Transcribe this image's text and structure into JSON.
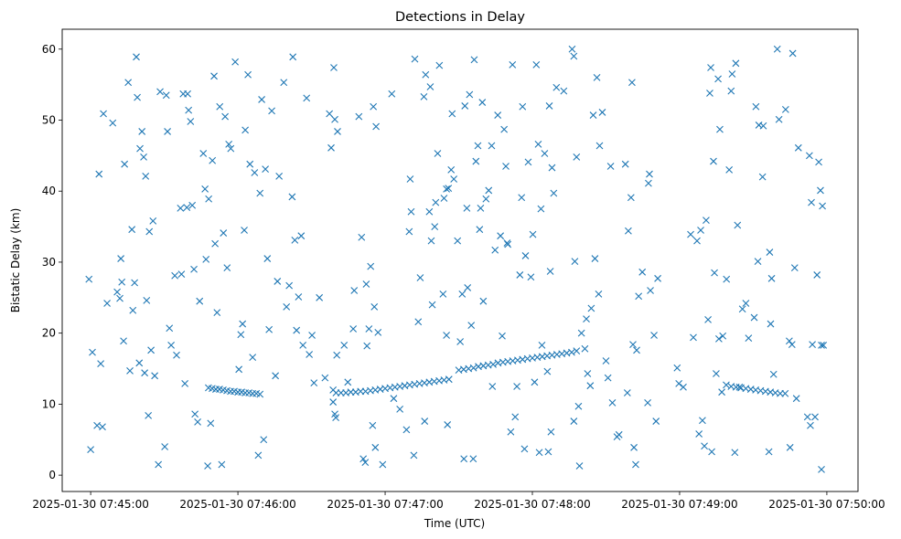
{
  "chart_data": {
    "type": "scatter",
    "title": "Detections in Delay",
    "xlabel": "Time (UTC)",
    "ylabel": "Bistatic Delay (km)",
    "x_units": "seconds after 2025-01-30 07:45:00",
    "xlim": [
      -11.6,
      312.7
    ],
    "ylim": [
      -2.3,
      62.8
    ],
    "grid": false,
    "marker": "x",
    "color": "#1f77b4",
    "xticks": [
      {
        "value": 0,
        "label": "2025-01-30 07:45:00"
      },
      {
        "value": 60,
        "label": "2025-01-30 07:46:00"
      },
      {
        "value": 120,
        "label": "2025-01-30 07:47:00"
      },
      {
        "value": 180,
        "label": "2025-01-30 07:48:00"
      },
      {
        "value": 240,
        "label": "2025-01-30 07:49:00"
      },
      {
        "value": 300,
        "label": "2025-01-30 07:50:00"
      }
    ],
    "yticks": [
      {
        "value": 0,
        "label": "0"
      },
      {
        "value": 10,
        "label": "10"
      },
      {
        "value": 20,
        "label": "20"
      },
      {
        "value": 30,
        "label": "30"
      },
      {
        "value": 40,
        "label": "40"
      },
      {
        "value": 50,
        "label": "50"
      },
      {
        "value": 60,
        "label": "60"
      }
    ],
    "points": [
      [
        -0.7,
        27.6
      ],
      [
        0,
        3.6
      ],
      [
        0.7,
        17.3
      ],
      [
        2.6,
        7.0
      ],
      [
        3.4,
        42.4
      ],
      [
        4.1,
        15.7
      ],
      [
        4.8,
        6.8
      ],
      [
        5.2,
        50.9
      ],
      [
        6.7,
        24.2
      ],
      [
        9,
        49.6
      ],
      [
        10.8,
        25.8
      ],
      [
        11.9,
        24.9
      ],
      [
        12.3,
        30.5
      ],
      [
        12.7,
        27.2
      ],
      [
        13.4,
        18.9
      ],
      [
        13.8,
        43.8
      ],
      [
        15.3,
        55.3
      ],
      [
        16,
        14.7
      ],
      [
        16.8,
        34.6
      ],
      [
        17.2,
        23.2
      ],
      [
        17.9,
        27.1
      ],
      [
        18.6,
        58.9
      ],
      [
        19,
        53.2
      ],
      [
        19.8,
        15.8
      ],
      [
        20.1,
        46.0
      ],
      [
        20.9,
        48.4
      ],
      [
        21.6,
        44.8
      ],
      [
        22.4,
        42.1
      ],
      [
        22,
        14.4
      ],
      [
        22.8,
        24.6
      ],
      [
        23.5,
        8.4
      ],
      [
        23.9,
        34.3
      ],
      [
        24.6,
        17.6
      ],
      [
        25.4,
        35.8
      ],
      [
        26.1,
        14.0
      ],
      [
        27.6,
        1.5
      ],
      [
        28.3,
        54.0
      ],
      [
        30.2,
        4.0
      ],
      [
        30.8,
        53.5
      ],
      [
        31.3,
        48.4
      ],
      [
        32.1,
        20.7
      ],
      [
        32.8,
        18.3
      ],
      [
        34.3,
        28.1
      ],
      [
        35,
        16.9
      ],
      [
        36.6,
        37.6
      ],
      [
        37,
        28.3
      ],
      [
        37.7,
        53.7
      ],
      [
        38.4,
        12.9
      ],
      [
        39.2,
        37.7
      ],
      [
        39.5,
        53.7
      ],
      [
        39.9,
        51.4
      ],
      [
        40.7,
        49.8
      ],
      [
        41.4,
        38.0
      ],
      [
        42.1,
        29.0
      ],
      [
        42.5,
        8.6
      ],
      [
        43.6,
        7.5
      ],
      [
        44.4,
        24.5
      ],
      [
        45.9,
        45.3
      ],
      [
        46.6,
        40.3
      ],
      [
        47,
        30.4
      ],
      [
        47.7,
        1.3
      ],
      [
        48.1,
        38.9
      ],
      [
        48.9,
        7.3
      ],
      [
        49.6,
        44.3
      ],
      [
        50.3,
        56.2
      ],
      [
        50.7,
        32.6
      ],
      [
        51.5,
        22.9
      ],
      [
        52.6,
        51.9
      ],
      [
        53.4,
        1.5
      ],
      [
        54.1,
        34.1
      ],
      [
        54.8,
        50.5
      ],
      [
        55.6,
        29.2
      ],
      [
        56.3,
        46.6
      ],
      [
        57.1,
        46.0
      ],
      [
        58.9,
        58.2
      ],
      [
        60.4,
        14.9
      ],
      [
        61.2,
        19.8
      ],
      [
        61.9,
        21.3
      ],
      [
        62.6,
        34.5
      ],
      [
        63,
        48.6
      ],
      [
        64.1,
        56.4
      ],
      [
        64.9,
        43.8
      ],
      [
        66,
        16.6
      ],
      [
        66.8,
        42.6
      ],
      [
        68.3,
        2.8
      ],
      [
        69,
        39.7
      ],
      [
        69.7,
        52.9
      ],
      [
        70.5,
        5.0
      ],
      [
        71.2,
        43.1
      ],
      [
        72,
        30.5
      ],
      [
        72.7,
        20.5
      ],
      [
        73.8,
        51.3
      ],
      [
        75.3,
        14.0
      ],
      [
        76.1,
        27.3
      ],
      [
        76.8,
        42.1
      ],
      [
        78.7,
        55.3
      ],
      [
        79.8,
        23.7
      ],
      [
        80.9,
        26.7
      ],
      [
        82.1,
        39.2
      ],
      [
        82.4,
        58.9
      ],
      [
        83.2,
        33.1
      ],
      [
        83.9,
        20.4
      ],
      [
        84.7,
        25.1
      ],
      [
        85.8,
        33.7
      ],
      [
        86.5,
        18.3
      ],
      [
        88,
        53.1
      ],
      [
        89.1,
        17.0
      ],
      [
        90.2,
        19.7
      ],
      [
        91,
        13.0
      ],
      [
        48,
        12.3
      ],
      [
        49.5,
        12.2
      ],
      [
        51,
        12.1
      ],
      [
        52.5,
        12.1
      ],
      [
        54,
        12.0
      ],
      [
        55.5,
        11.9
      ],
      [
        57,
        11.8
      ],
      [
        58.5,
        11.8
      ],
      [
        60,
        11.7
      ],
      [
        61.5,
        11.7
      ],
      [
        63,
        11.6
      ],
      [
        64.5,
        11.6
      ],
      [
        66,
        11.5
      ],
      [
        67.5,
        11.5
      ],
      [
        69,
        11.4
      ],
      [
        93.2,
        25
      ],
      [
        95.5,
        13.7
      ],
      [
        97.3,
        50.9
      ],
      [
        98,
        46.1
      ],
      [
        99.1,
        57.4
      ],
      [
        99.5,
        50.1
      ],
      [
        100.6,
        48.4
      ],
      [
        98.8,
        12
      ],
      [
        98.8,
        10.3
      ],
      [
        99.5,
        8.6
      ],
      [
        99.9,
        8.1
      ],
      [
        100.3,
        16.9
      ],
      [
        103.3,
        18.3
      ],
      [
        104.8,
        13.1
      ],
      [
        107,
        20.6
      ],
      [
        107.4,
        26
      ],
      [
        109.3,
        50.5
      ],
      [
        110.4,
        33.5
      ],
      [
        111.1,
        2.3
      ],
      [
        111.9,
        1.8
      ],
      [
        112.3,
        26.9
      ],
      [
        112.6,
        18.2
      ],
      [
        113.4,
        20.6
      ],
      [
        114.1,
        29.4
      ],
      [
        114.9,
        7.0
      ],
      [
        115.2,
        51.9
      ],
      [
        115.6,
        23.7
      ],
      [
        116,
        3.9
      ],
      [
        116.3,
        49.1
      ],
      [
        117.1,
        20.1
      ],
      [
        119,
        1.5
      ],
      [
        122.7,
        53.7
      ],
      [
        123.5,
        10.8
      ],
      [
        126,
        9.3
      ],
      [
        128.7,
        6.4
      ],
      [
        129.8,
        34.3
      ],
      [
        130.2,
        41.7
      ],
      [
        130.6,
        37.1
      ],
      [
        131.7,
        2.8
      ],
      [
        132.1,
        58.6
      ],
      [
        133.5,
        21.6
      ],
      [
        134.3,
        27.8
      ],
      [
        135.8,
        53.3
      ],
      [
        136.1,
        7.6
      ],
      [
        136.5,
        56.4
      ],
      [
        138,
        37.1
      ],
      [
        138.4,
        54.7
      ],
      [
        138.8,
        33
      ],
      [
        139.2,
        24
      ],
      [
        140.2,
        35
      ],
      [
        140.6,
        38.4
      ],
      [
        141.4,
        45.3
      ],
      [
        142.1,
        57.7
      ],
      [
        143.6,
        25.5
      ],
      [
        144,
        39
      ],
      [
        145,
        40.3
      ],
      [
        145,
        19.7
      ],
      [
        145.4,
        7.1
      ],
      [
        145.8,
        40.4
      ],
      [
        146.9,
        43
      ],
      [
        147.3,
        50.9
      ],
      [
        148,
        41.7
      ],
      [
        149.5,
        33
      ],
      [
        150.6,
        18.8
      ],
      [
        151.4,
        25.5
      ],
      [
        152.1,
        2.3
      ],
      [
        152.5,
        52
      ],
      [
        153.3,
        37.6
      ],
      [
        153.6,
        26.4
      ],
      [
        154.4,
        53.6
      ],
      [
        155.1,
        21.1
      ],
      [
        155.9,
        2.3
      ],
      [
        156.3,
        58.5
      ],
      [
        157,
        44.2
      ],
      [
        157.8,
        46.4
      ],
      [
        158.5,
        34.6
      ],
      [
        158.9,
        37.6
      ],
      [
        159.6,
        52.5
      ],
      [
        160,
        24.5
      ],
      [
        161.1,
        38.9
      ],
      [
        162.2,
        40.1
      ],
      [
        163.4,
        46.4
      ],
      [
        163.7,
        12.5
      ],
      [
        164.8,
        31.7
      ],
      [
        165.9,
        50.7
      ],
      [
        167,
        33.7
      ],
      [
        167.7,
        19.6
      ],
      [
        168.5,
        48.7
      ],
      [
        169.2,
        43.5
      ],
      [
        169.7,
        32.7
      ],
      [
        170,
        32.5
      ],
      [
        171.2,
        6.1
      ],
      [
        171.9,
        57.8
      ],
      [
        173,
        8.2
      ],
      [
        173.7,
        12.5
      ],
      [
        174.9,
        28.2
      ],
      [
        175.6,
        39.1
      ],
      [
        176,
        51.9
      ],
      [
        176.8,
        3.7
      ],
      [
        177.2,
        30.9
      ],
      [
        178.3,
        44.1
      ],
      [
        179.4,
        27.9
      ],
      [
        180.2,
        33.9
      ],
      [
        180.9,
        13.1
      ],
      [
        181.6,
        57.8
      ],
      [
        182.4,
        46.6
      ],
      [
        182.8,
        3.2
      ],
      [
        183.5,
        37.5
      ],
      [
        183.9,
        18.3
      ],
      [
        185,
        45.3
      ],
      [
        186.1,
        14.6
      ],
      [
        186.5,
        3.3
      ],
      [
        186.9,
        52
      ],
      [
        187.3,
        28.7
      ],
      [
        187.6,
        6.1
      ],
      [
        188,
        43.3
      ],
      [
        188.7,
        39.7
      ],
      [
        189.8,
        54.6
      ],
      [
        192.8,
        54.1
      ],
      [
        196.2,
        60
      ],
      [
        196.9,
        59
      ],
      [
        196.9,
        7.6
      ],
      [
        197.3,
        30.1
      ],
      [
        198,
        44.8
      ],
      [
        198.8,
        9.7
      ],
      [
        199.2,
        1.3
      ],
      [
        201.4,
        17.8
      ],
      [
        202.5,
        14.3
      ],
      [
        203.6,
        12.6
      ],
      [
        204.8,
        50.7
      ],
      [
        205.5,
        30.5
      ],
      [
        206.3,
        56
      ],
      [
        207,
        25.5
      ],
      [
        207.4,
        46.4
      ],
      [
        208.5,
        51.1
      ],
      [
        210,
        16.1
      ],
      [
        210.8,
        13.7
      ],
      [
        211.9,
        43.5
      ],
      [
        212.6,
        10.2
      ],
      [
        214.5,
        5.4
      ],
      [
        215.3,
        5.7
      ],
      [
        217.9,
        43.8
      ],
      [
        218.7,
        11.6
      ],
      [
        219.1,
        34.4
      ],
      [
        220.2,
        39.1
      ],
      [
        220.6,
        55.3
      ],
      [
        221,
        18.4
      ],
      [
        221.4,
        3.9
      ],
      [
        222.1,
        1.5
      ],
      [
        222.5,
        17.6
      ],
      [
        223.3,
        25.2
      ],
      [
        224.8,
        28.6
      ],
      [
        227,
        10.2
      ],
      [
        227.3,
        41.1
      ],
      [
        227.7,
        42.4
      ],
      [
        228.1,
        26
      ],
      [
        229.6,
        19.7
      ],
      [
        230.4,
        7.6
      ],
      [
        231.1,
        27.7
      ],
      [
        100,
        11.6
      ],
      [
        102,
        11.6
      ],
      [
        104,
        11.6
      ],
      [
        106,
        11.7
      ],
      [
        108,
        11.7
      ],
      [
        110,
        11.8
      ],
      [
        112,
        11.8
      ],
      [
        114,
        11.9
      ],
      [
        116,
        12.0
      ],
      [
        118,
        12.1
      ],
      [
        120,
        12.2
      ],
      [
        122,
        12.3
      ],
      [
        124,
        12.4
      ],
      [
        126,
        12.5
      ],
      [
        128,
        12.6
      ],
      [
        130,
        12.7
      ],
      [
        132,
        12.8
      ],
      [
        134,
        12.9
      ],
      [
        136,
        13.0
      ],
      [
        138,
        13.1
      ],
      [
        140,
        13.2
      ],
      [
        142,
        13.3
      ],
      [
        144,
        13.4
      ],
      [
        146,
        13.5
      ],
      [
        150,
        14.8
      ],
      [
        152,
        14.9
      ],
      [
        154,
        15.0
      ],
      [
        156,
        15.1
      ],
      [
        158,
        15.3
      ],
      [
        160,
        15.4
      ],
      [
        162,
        15.5
      ],
      [
        164,
        15.6
      ],
      [
        166,
        15.8
      ],
      [
        168,
        15.9
      ],
      [
        170,
        16.0
      ],
      [
        172,
        16.1
      ],
      [
        174,
        16.2
      ],
      [
        176,
        16.3
      ],
      [
        178,
        16.4
      ],
      [
        180,
        16.5
      ],
      [
        182,
        16.6
      ],
      [
        184,
        16.7
      ],
      [
        186,
        16.8
      ],
      [
        188,
        16.9
      ],
      [
        190,
        17.0
      ],
      [
        192,
        17.1
      ],
      [
        194,
        17.2
      ],
      [
        196,
        17.3
      ],
      [
        198,
        17.5
      ],
      [
        200,
        20.0
      ],
      [
        202,
        22.0
      ],
      [
        204,
        23.5
      ],
      [
        239,
        15.1
      ],
      [
        239.7,
        12.9
      ],
      [
        241.5,
        12.4
      ],
      [
        244.5,
        33.9
      ],
      [
        245.6,
        19.4
      ],
      [
        247.1,
        33
      ],
      [
        247.9,
        5.8
      ],
      [
        248.6,
        34.5
      ],
      [
        249.3,
        7.7
      ],
      [
        250.1,
        4.1
      ],
      [
        250.8,
        35.9
      ],
      [
        251.6,
        21.9
      ],
      [
        252.3,
        53.8
      ],
      [
        252.7,
        57.4
      ],
      [
        253.1,
        3.3
      ],
      [
        253.8,
        44.2
      ],
      [
        254.2,
        28.5
      ],
      [
        254.9,
        14.3
      ],
      [
        255.7,
        55.8
      ],
      [
        256,
        19.2
      ],
      [
        256.4,
        48.7
      ],
      [
        257.2,
        11.7
      ],
      [
        257.6,
        19.6
      ],
      [
        259.1,
        27.6
      ],
      [
        260.2,
        43
      ],
      [
        261,
        54.1
      ],
      [
        261.4,
        56.5
      ],
      [
        262.5,
        3.2
      ],
      [
        262.9,
        58
      ],
      [
        263.6,
        35.2
      ],
      [
        264.4,
        12.4
      ],
      [
        265.6,
        23.4
      ],
      [
        267,
        24.2
      ],
      [
        268.1,
        19.3
      ],
      [
        270.4,
        22.2
      ],
      [
        271.1,
        51.9
      ],
      [
        271.9,
        30.1
      ],
      [
        272.3,
        49.3
      ],
      [
        273.8,
        42
      ],
      [
        274.1,
        49.2
      ],
      [
        276.4,
        3.3
      ],
      [
        276.7,
        31.4
      ],
      [
        277.1,
        21.3
      ],
      [
        277.5,
        27.7
      ],
      [
        278.3,
        14.2
      ],
      [
        279.8,
        60
      ],
      [
        280.5,
        50.1
      ],
      [
        283.2,
        51.5
      ],
      [
        284.7,
        18.9
      ],
      [
        285,
        3.9
      ],
      [
        285.8,
        18.4
      ],
      [
        286.1,
        59.4
      ],
      [
        286.9,
        29.2
      ],
      [
        287.6,
        10.8
      ],
      [
        288.4,
        46.1
      ],
      [
        292.1,
        8.2
      ],
      [
        292.9,
        45
      ],
      [
        293.3,
        7
      ],
      [
        293.7,
        38.4
      ],
      [
        294.1,
        18.4
      ],
      [
        295.2,
        8.2
      ],
      [
        296,
        28.2
      ],
      [
        296.7,
        44.1
      ],
      [
        297.8,
        18.3
      ],
      [
        298.2,
        37.9
      ],
      [
        298.6,
        18.3
      ],
      [
        297.8,
        0.8
      ],
      [
        297.4,
        40.1
      ],
      [
        259,
        12.7
      ],
      [
        261,
        12.5
      ],
      [
        263,
        12.4
      ],
      [
        265,
        12.3
      ],
      [
        267,
        12.2
      ],
      [
        269,
        12.1
      ],
      [
        271,
        12.0
      ],
      [
        273,
        11.9
      ],
      [
        275,
        11.8
      ],
      [
        277,
        11.7
      ],
      [
        279,
        11.6
      ],
      [
        281,
        11.5
      ],
      [
        283,
        11.5
      ]
    ]
  }
}
